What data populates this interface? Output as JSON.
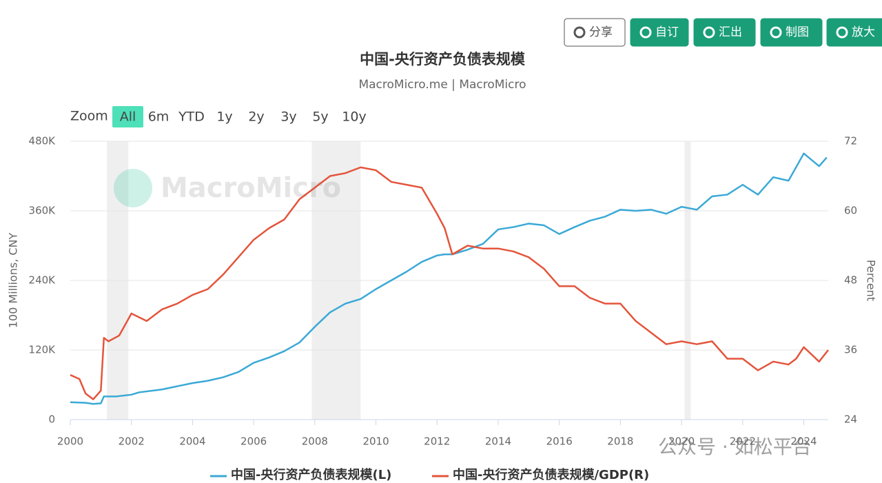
{
  "toolbar": [
    "分享",
    "自订",
    "汇出",
    "制图",
    "放大"
  ],
  "zoom": {
    "label": "Zoom",
    "buttons": [
      "All",
      "6m",
      "YTD",
      "1y",
      "2y",
      "3y",
      "5y",
      "10y"
    ]
  },
  "watermark": [
    "MacroMicro",
    "公众号 · 如松平台"
  ],
  "chart_data": {
    "type": "line",
    "title": "中国-央行资产负债表规模",
    "subtitle": "MacroMicro.me | MacroMicro",
    "y_label": "100 Millions, CNY",
    "y2_label": "Percent",
    "xlim": [
      2000,
      2024.8
    ],
    "xticks": [
      2000,
      2002,
      2004,
      2006,
      2008,
      2010,
      2012,
      2014,
      2016,
      2018,
      2020,
      2022,
      2024
    ],
    "ylim": [
      0,
      480000
    ],
    "yticks": [
      0,
      {
        "value": 120000,
        "label": "120K"
      },
      {
        "value": 240000,
        "label": "240K"
      },
      {
        "value": 360000,
        "label": "360K"
      },
      {
        "value": 480000,
        "label": "480K"
      }
    ],
    "y2lim": [
      24,
      72
    ],
    "y2ticks": [
      24,
      36,
      48,
      60,
      72
    ],
    "grid": true,
    "shaded_ranges": [
      [
        2001.2,
        2001.9
      ],
      [
        2007.9,
        2009.5
      ],
      [
        2020.1,
        2020.3
      ]
    ],
    "shade_color": "#efefef",
    "series": [
      {
        "name": "中国-央行资产负债表规模(L)",
        "color": "#3aa9d6",
        "axis": "y",
        "x": [
          2000,
          2000.5,
          2000.75,
          2001,
          2001.1,
          2001.5,
          2002,
          2002.25,
          2003,
          2004,
          2004.5,
          2005,
          2005.5,
          2006,
          2006.5,
          2007,
          2007.5,
          2008,
          2008.5,
          2009,
          2009.5,
          2010,
          2010.5,
          2011,
          2011.5,
          2012,
          2012.25,
          2012.5,
          2013,
          2013.5,
          2014,
          2014.5,
          2015,
          2015.5,
          2016,
          2016.5,
          2017,
          2017.5,
          2018,
          2018.5,
          2019,
          2019.5,
          2020,
          2020.5,
          2021,
          2021.5,
          2022,
          2022.5,
          2023,
          2023.5,
          2024,
          2024.5,
          2024.75
        ],
        "values": [
          30000,
          29000,
          27000,
          28000,
          40000,
          40000,
          43000,
          47000,
          52000,
          63000,
          67000,
          73000,
          82000,
          98000,
          107000,
          118000,
          133000,
          160000,
          185000,
          200000,
          208000,
          225000,
          240000,
          255000,
          272000,
          283000,
          285000,
          285000,
          293000,
          303000,
          328000,
          332000,
          338000,
          335000,
          320000,
          332000,
          343000,
          350000,
          362000,
          360000,
          362000,
          355000,
          367000,
          362000,
          385000,
          388000,
          405000,
          388000,
          418000,
          412000,
          459000,
          437000,
          452000
        ]
      },
      {
        "name": "中国-央行资产负债表规模/GDP(R)",
        "color": "#e4543b",
        "axis": "y2",
        "x": [
          2000,
          2000.3,
          2000.5,
          2000.75,
          2001,
          2001.1,
          2001.25,
          2001.6,
          2002,
          2002.5,
          2003,
          2003.5,
          2004,
          2004.5,
          2005,
          2005.5,
          2006,
          2006.5,
          2007,
          2007.5,
          2008,
          2008.5,
          2009,
          2009.5,
          2010,
          2010.5,
          2011,
          2011.5,
          2012,
          2012.25,
          2012.5,
          2013,
          2013.5,
          2014,
          2014.5,
          2015,
          2015.5,
          2016,
          2016.5,
          2017,
          2017.5,
          2018,
          2018.5,
          2019,
          2019.5,
          2020,
          2020.5,
          2021,
          2021.5,
          2022,
          2022.5,
          2023,
          2023.5,
          2023.75,
          2024,
          2024.5,
          2024.8
        ],
        "values": [
          31.7,
          31,
          28.5,
          27.5,
          29,
          38.1,
          37.5,
          38.5,
          42.3,
          41,
          43,
          44,
          45.5,
          46.5,
          49,
          52,
          55,
          57,
          58.5,
          62,
          64,
          66,
          66.5,
          67.5,
          67,
          65,
          64.5,
          64,
          59.5,
          57,
          52.5,
          54,
          53.5,
          53.5,
          53,
          52,
          50,
          47,
          47,
          45,
          44,
          44,
          41,
          39,
          37,
          37.5,
          37,
          37.5,
          34.5,
          34.5,
          32.5,
          34,
          33.5,
          34.5,
          36.5,
          34,
          36
        ]
      }
    ]
  }
}
